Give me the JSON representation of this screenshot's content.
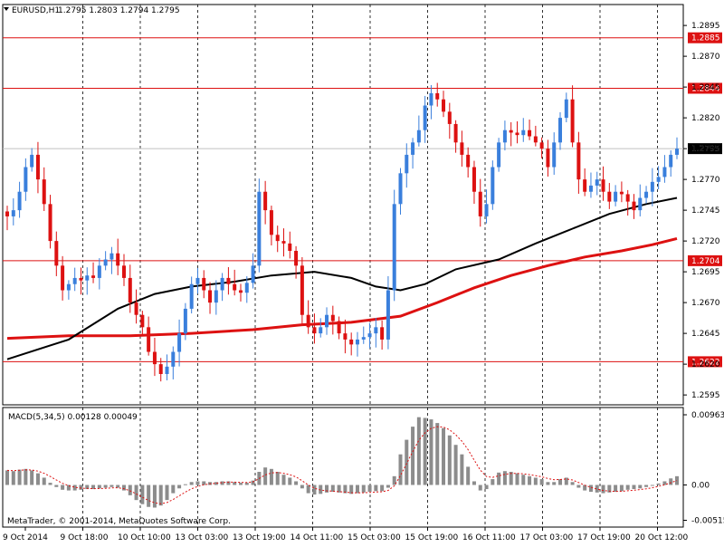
{
  "header": {
    "symbol": "EURUSD,H1",
    "ohlc": "1.2795 1.2803 1.2794 1.2795",
    "symbol_menu_icon": "triangle-down-icon"
  },
  "copyright": "MetaTrader, © 2001-2014, MetaQuotes Software Corp.",
  "macd": {
    "label": "MACD(5,34,5) 0.00128 0.00049",
    "ticks": [
      "0.00963",
      "0.00",
      "-0.00515"
    ],
    "tick_values": [
      0.00963,
      0.0,
      -0.00515
    ]
  },
  "colors": {
    "background": "#ffffff",
    "grid": "#000000",
    "bull": "#3a7fdc",
    "bear": "#dd1111",
    "level_line": "#dd1111",
    "ma_fast": "#000000",
    "ma_slow": "#dd1111",
    "histogram": "#8c8c8c",
    "signal": "#dd1111"
  },
  "chart_data": {
    "type": "candlestick",
    "symbol": "EURUSD",
    "timeframe": "H1",
    "price_ticks": [
      "1.2895",
      "1.2870",
      "1.2845",
      "1.2820",
      "1.2795",
      "1.2770",
      "1.2745",
      "1.2720",
      "1.2695",
      "1.2670",
      "1.2645",
      "1.2620",
      "1.2595"
    ],
    "ylim": [
      1.2587,
      1.2912
    ],
    "levels": [
      {
        "label": "1.2885",
        "value": 1.2885
      },
      {
        "label": "1.2844",
        "value": 1.2844
      },
      {
        "label": "1.2704",
        "value": 1.2704
      },
      {
        "label": "1.2622",
        "value": 1.2622
      }
    ],
    "current_price": {
      "label": "1.2795",
      "value": 1.2795
    },
    "time_labels": [
      "9 Oct 2014",
      "9 Oct 18:00",
      "10 Oct 10:00",
      "13 Oct 03:00",
      "13 Oct 19:00",
      "14 Oct 11:00",
      "15 Oct 03:00",
      "15 Oct 19:00",
      "16 Oct 11:00",
      "17 Oct 03:00",
      "17 Oct 19:00",
      "20 Oct 12:00"
    ],
    "closes": [
      1.274,
      1.2745,
      1.276,
      1.278,
      1.279,
      1.277,
      1.275,
      1.272,
      1.27,
      1.268,
      1.2685,
      1.269,
      1.2688,
      1.2692,
      1.269,
      1.27,
      1.2705,
      1.271,
      1.27,
      1.269,
      1.267,
      1.266,
      1.265,
      1.263,
      1.262,
      1.2612,
      1.2618,
      1.263,
      1.2645,
      1.2665,
      1.2685,
      1.269,
      1.268,
      1.267,
      1.268,
      1.269,
      1.2685,
      1.268,
      1.2678,
      1.2686,
      1.27,
      1.276,
      1.2745,
      1.2725,
      1.272,
      1.2718,
      1.2712,
      1.27,
      1.266,
      1.265,
      1.2645,
      1.265,
      1.266,
      1.2655,
      1.2645,
      1.264,
      1.2636,
      1.264,
      1.2642,
      1.2645,
      1.265,
      1.264,
      1.268,
      1.275,
      1.2775,
      1.279,
      1.28,
      1.281,
      1.283,
      1.284,
      1.2835,
      1.2825,
      1.2815,
      1.28,
      1.279,
      1.278,
      1.276,
      1.274,
      1.275,
      1.278,
      1.28,
      1.281,
      1.2808,
      1.2806,
      1.281,
      1.2805,
      1.28,
      1.2795,
      1.278,
      1.28,
      1.282,
      1.2835,
      1.28,
      1.277,
      1.276,
      1.2765,
      1.277,
      1.276,
      1.2752,
      1.276,
      1.2758,
      1.2752,
      1.2745,
      1.2755,
      1.276,
      1.2768,
      1.2772,
      1.278,
      1.279,
      1.2795
    ],
    "ma_fast": [
      [
        0,
        1.2624
      ],
      [
        10,
        1.264
      ],
      [
        18,
        1.2665
      ],
      [
        24,
        1.2677
      ],
      [
        30,
        1.2683
      ],
      [
        37,
        1.2687
      ],
      [
        43,
        1.2692
      ],
      [
        50,
        1.2695
      ],
      [
        56,
        1.269
      ],
      [
        60,
        1.2683
      ],
      [
        64,
        1.268
      ],
      [
        68,
        1.2685
      ],
      [
        73,
        1.2697
      ],
      [
        80,
        1.2705
      ],
      [
        86,
        1.2718
      ],
      [
        92,
        1.273
      ],
      [
        98,
        1.2742
      ],
      [
        104,
        1.275
      ],
      [
        109,
        1.2755
      ]
    ],
    "ma_slow": [
      [
        0,
        1.2641
      ],
      [
        10,
        1.2643
      ],
      [
        20,
        1.2643
      ],
      [
        30,
        1.2645
      ],
      [
        40,
        1.2648
      ],
      [
        48,
        1.2652
      ],
      [
        56,
        1.2654
      ],
      [
        64,
        1.2659
      ],
      [
        70,
        1.267
      ],
      [
        76,
        1.2682
      ],
      [
        82,
        1.2692
      ],
      [
        88,
        1.27
      ],
      [
        94,
        1.2707
      ],
      [
        100,
        1.2712
      ],
      [
        105,
        1.2717
      ],
      [
        109,
        1.2722
      ]
    ],
    "macd_hist": [
      0.002,
      0.0019,
      0.0021,
      0.0022,
      0.002,
      0.0016,
      0.001,
      0.0003,
      -0.0003,
      -0.0007,
      -0.0008,
      -0.0008,
      -0.0007,
      -0.0006,
      -0.0006,
      -0.0005,
      -0.0004,
      -0.0003,
      -0.0004,
      -0.0008,
      -0.0015,
      -0.0022,
      -0.0028,
      -0.0032,
      -0.0033,
      -0.003,
      -0.0022,
      -0.0012,
      -0.0005,
      0.0001,
      0.0004,
      0.0005,
      0.0005,
      0.0004,
      0.0004,
      0.0005,
      0.0005,
      0.0004,
      0.0003,
      0.0003,
      0.0006,
      0.0018,
      0.0024,
      0.0022,
      0.0018,
      0.0014,
      0.001,
      0.0005,
      -0.0005,
      -0.0012,
      -0.0014,
      -0.0013,
      -0.0011,
      -0.001,
      -0.0011,
      -0.0012,
      -0.0013,
      -0.0012,
      -0.0011,
      -0.001,
      -0.0009,
      -0.0009,
      -0.0004,
      0.0012,
      0.0042,
      0.0062,
      0.008,
      0.0093,
      0.0092,
      0.009,
      0.0085,
      0.0078,
      0.0068,
      0.0055,
      0.0042,
      0.0025,
      0.0005,
      -0.0008,
      -0.0006,
      0.0008,
      0.0017,
      0.0019,
      0.0018,
      0.0016,
      0.0014,
      0.0012,
      0.001,
      0.0008,
      0.0004,
      0.0004,
      0.0008,
      0.001,
      0.0004,
      -0.0004,
      -0.0008,
      -0.001,
      -0.0011,
      -0.0012,
      -0.0011,
      -0.001,
      -0.0009,
      -0.0007,
      -0.0006,
      -0.0005,
      -0.0003,
      -0.0001,
      0.0002,
      0.0005,
      0.0009,
      0.0012
    ],
    "grid": "dashed vertical"
  }
}
